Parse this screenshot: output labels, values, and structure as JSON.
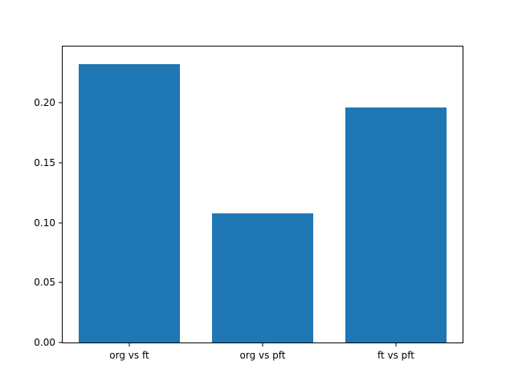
{
  "chart_data": {
    "type": "bar",
    "title": "",
    "xlabel": "",
    "ylabel": "",
    "categories": [
      "org vs ft",
      "org vs pft",
      "ft vs pft"
    ],
    "values": [
      0.232,
      0.108,
      0.196
    ],
    "ylim": [
      0,
      0.247
    ],
    "yticks": [
      0.0,
      0.05,
      0.1,
      0.15,
      0.2
    ],
    "ytick_labels": [
      "0.00",
      "0.05",
      "0.10",
      "0.15",
      "0.20"
    ],
    "bar_color": "#1f77b4",
    "axes_edge_color": "#000000",
    "background_color": "#ffffff",
    "grid": false,
    "legend_position": null
  }
}
